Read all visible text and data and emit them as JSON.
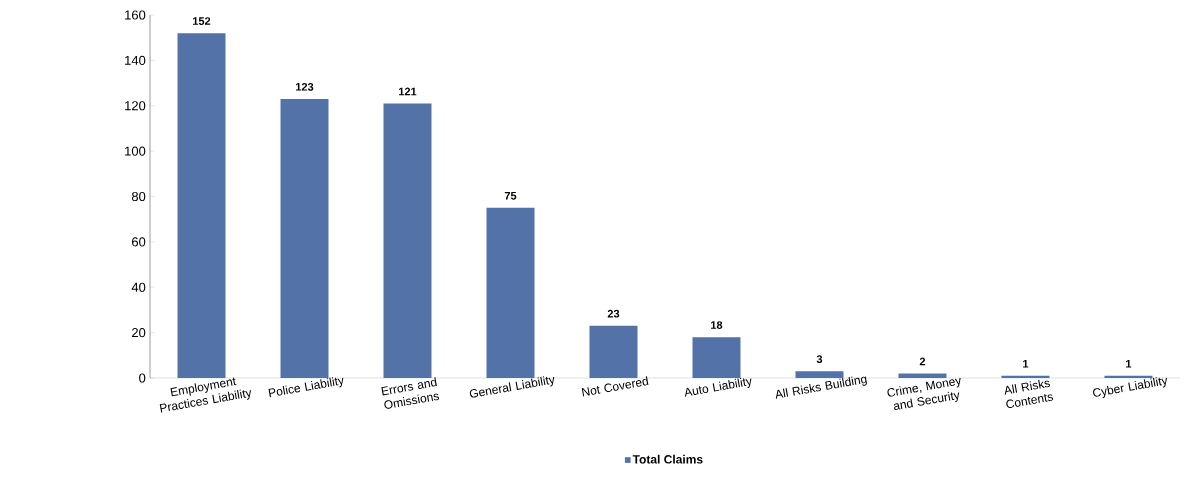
{
  "chart_data": {
    "type": "bar",
    "categories": [
      "Employment Practices Liability",
      "Police Liability",
      "Errors and Omissions",
      "General Liability",
      "Not Covered",
      "Auto Liability",
      "All Risks Building",
      "Crime, Money and Security",
      "All Risks Contents",
      "Cyber Liability"
    ],
    "series": [
      {
        "name": "Total Claims",
        "color": "#5272a8",
        "values": [
          152,
          123,
          121,
          75,
          23,
          18,
          3,
          2,
          1,
          1
        ]
      }
    ],
    "ylim": [
      0,
      160
    ],
    "yticks": [
      0,
      20,
      40,
      60,
      80,
      100,
      120,
      140,
      160
    ],
    "data_labels": true,
    "legend": "bottom",
    "grid": false
  }
}
